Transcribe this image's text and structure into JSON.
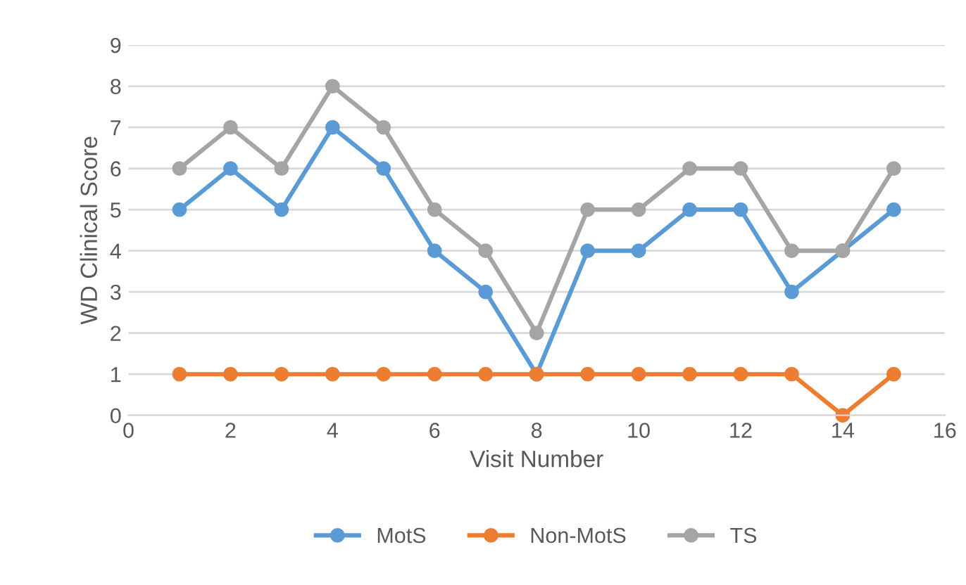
{
  "chart_data": {
    "type": "line",
    "xlabel": "Visit Number",
    "ylabel": "WD Clinical Score",
    "x": [
      1,
      2,
      3,
      4,
      5,
      6,
      7,
      8,
      9,
      10,
      11,
      12,
      13,
      14,
      15
    ],
    "series": [
      {
        "name": "MotS",
        "color": "#5b9bd5",
        "values": [
          5,
          6,
          5,
          7,
          6,
          4,
          3,
          1,
          4,
          4,
          5,
          5,
          3,
          4,
          5
        ]
      },
      {
        "name": "Non-MotS",
        "color": "#ed7d31",
        "values": [
          1,
          1,
          1,
          1,
          1,
          1,
          1,
          1,
          1,
          1,
          1,
          1,
          1,
          0,
          1
        ]
      },
      {
        "name": "TS",
        "color": "#a5a5a5",
        "values": [
          6,
          7,
          6,
          8,
          7,
          5,
          4,
          2,
          5,
          5,
          6,
          6,
          4,
          4,
          6
        ]
      }
    ],
    "xlim": [
      0,
      16
    ],
    "xticks": [
      0,
      2,
      4,
      6,
      8,
      10,
      12,
      14,
      16
    ],
    "ylim": [
      0,
      9
    ],
    "yticks": [
      0,
      1,
      2,
      3,
      4,
      5,
      6,
      7,
      8,
      9
    ],
    "grid": "y",
    "legend": "bottom",
    "marker": "circle",
    "line_style": "solid"
  }
}
